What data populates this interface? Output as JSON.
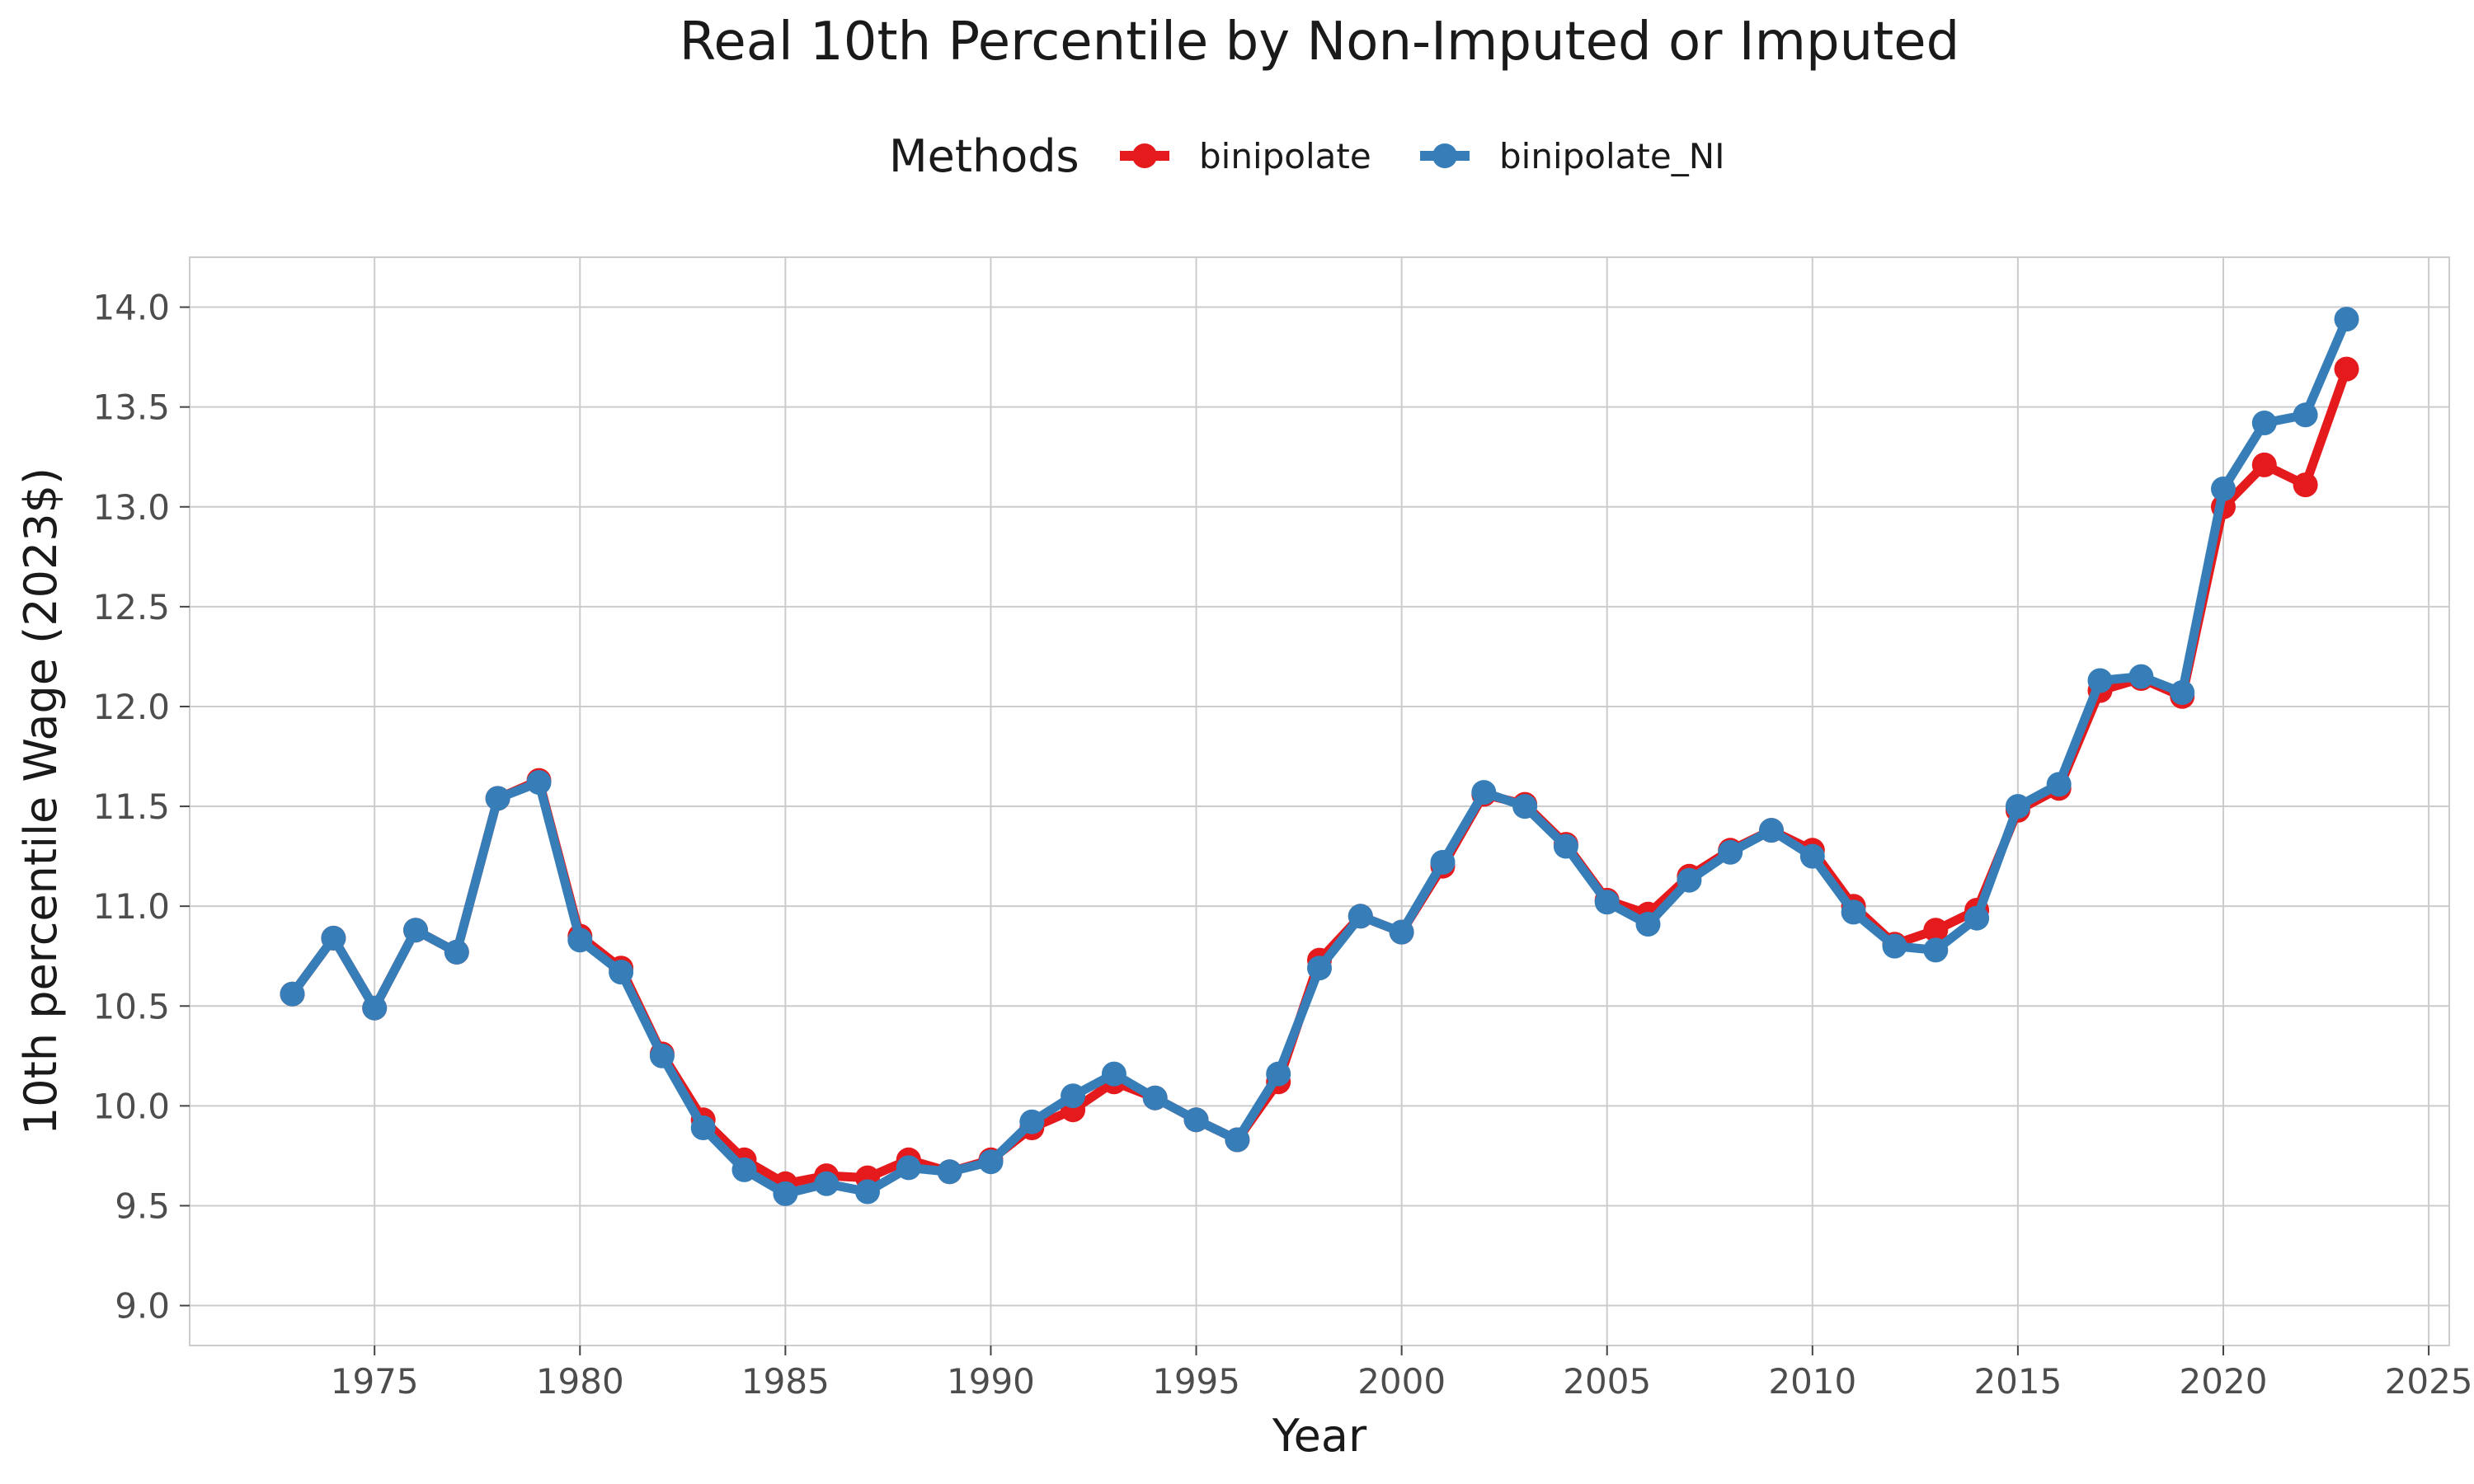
{
  "chart_data": {
    "type": "line",
    "title": "Real 10th Percentile by Non-Imputed or Imputed",
    "xlabel": "Year",
    "ylabel": "10th percentile Wage (2023$)",
    "legend_title": "Methods",
    "legend_position": "top",
    "grid": true,
    "xlim": [
      1970.5,
      2025.5
    ],
    "ylim": [
      8.8,
      14.25
    ],
    "x_ticks": [
      1975,
      1980,
      1985,
      1990,
      1995,
      2000,
      2005,
      2010,
      2015,
      2020,
      2025
    ],
    "y_ticks": [
      9.0,
      9.5,
      10.0,
      10.5,
      11.0,
      11.5,
      12.0,
      12.5,
      13.0,
      13.5,
      14.0
    ],
    "x": [
      1973,
      1974,
      1975,
      1976,
      1977,
      1978,
      1979,
      1980,
      1981,
      1982,
      1983,
      1984,
      1985,
      1986,
      1987,
      1988,
      1989,
      1990,
      1991,
      1992,
      1993,
      1994,
      1995,
      1996,
      1997,
      1998,
      1999,
      2000,
      2001,
      2002,
      2003,
      2004,
      2005,
      2006,
      2007,
      2008,
      2009,
      2010,
      2011,
      2012,
      2013,
      2014,
      2015,
      2016,
      2017,
      2018,
      2019,
      2020,
      2021,
      2022,
      2023
    ],
    "series": [
      {
        "name": "binipolate",
        "color": "#e41a1c",
        "values": [
          10.56,
          10.84,
          10.49,
          10.88,
          10.77,
          11.54,
          11.63,
          10.85,
          10.69,
          10.26,
          9.93,
          9.73,
          9.61,
          9.65,
          9.64,
          9.73,
          9.67,
          9.73,
          9.89,
          9.98,
          10.12,
          10.04,
          9.93,
          9.83,
          10.12,
          10.73,
          10.95,
          10.87,
          11.2,
          11.56,
          11.51,
          11.31,
          11.03,
          10.96,
          11.15,
          11.28,
          11.38,
          11.28,
          11.0,
          10.81,
          10.88,
          10.98,
          11.48,
          11.59,
          12.08,
          12.14,
          12.05,
          13.0,
          13.21,
          13.11,
          13.69
        ]
      },
      {
        "name": "binipolate_NI",
        "color": "#377eb8",
        "values": [
          10.56,
          10.84,
          10.49,
          10.88,
          10.77,
          11.54,
          11.62,
          10.83,
          10.67,
          10.25,
          9.89,
          9.68,
          9.56,
          9.61,
          9.57,
          9.69,
          9.67,
          9.72,
          9.92,
          10.05,
          10.16,
          10.04,
          9.93,
          9.83,
          10.16,
          10.69,
          10.95,
          10.87,
          11.22,
          11.57,
          11.5,
          11.3,
          11.02,
          10.91,
          11.13,
          11.27,
          11.38,
          11.25,
          10.97,
          10.8,
          10.78,
          10.94,
          11.5,
          11.61,
          12.13,
          12.15,
          12.07,
          13.09,
          13.42,
          13.46,
          13.94
        ]
      }
    ]
  }
}
